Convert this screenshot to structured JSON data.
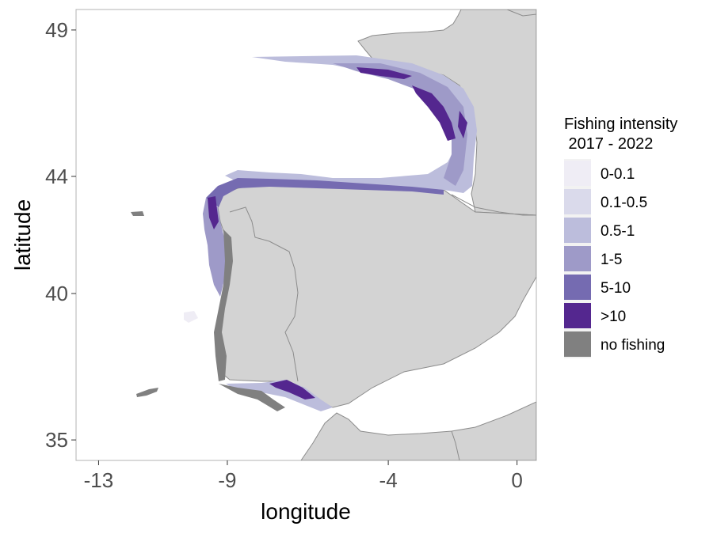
{
  "axes": {
    "x_title": "longitude",
    "y_title": "latitude",
    "x_ticks": [
      {
        "value": -13,
        "label": "-13"
      },
      {
        "value": -9,
        "label": "-9"
      },
      {
        "value": -4,
        "label": "-4"
      },
      {
        "value": 0,
        "label": "0"
      }
    ],
    "y_ticks": [
      {
        "value": 49,
        "label": "49"
      },
      {
        "value": 44,
        "label": "44"
      },
      {
        "value": 40,
        "label": "40"
      },
      {
        "value": 35,
        "label": "35"
      }
    ],
    "x_range": [
      -13.7,
      0.6
    ],
    "y_range": [
      34.3,
      49.7
    ]
  },
  "legend": {
    "title_line1": "Fishing intensity",
    "title_line2": " 2017 - 2022",
    "items": [
      {
        "label": "0-0.1",
        "color": "#efedf5"
      },
      {
        "label": "0.1-0.5",
        "color": "#dadaeb"
      },
      {
        "label": "0.5-1",
        "color": "#bcbddc"
      },
      {
        "label": "1-5",
        "color": "#9e9ac8"
      },
      {
        "label": "5-10",
        "color": "#756bb1"
      },
      {
        "label": ">10",
        "color": "#54278f"
      },
      {
        "label": "no fishing",
        "color": "#808080"
      }
    ]
  },
  "colors": {
    "land": "#d3d3d3",
    "land_border": "#8c8c8c",
    "sea": "#ffffff"
  }
}
